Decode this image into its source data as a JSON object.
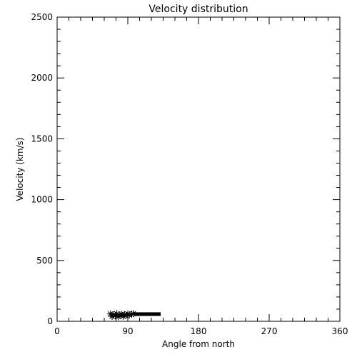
{
  "chart_data": {
    "type": "scatter",
    "title": "Velocity distribution",
    "x_label": "Angle from north",
    "y_label": "Velocity (km/s)",
    "xlim": [
      0,
      360
    ],
    "xticks": [
      0,
      90,
      180,
      270,
      360
    ],
    "ylim": [
      0,
      2500
    ],
    "yticks": [
      0,
      500,
      1000,
      1500,
      2000,
      2500
    ],
    "series": [
      {
        "marker": "asterisk",
        "color": "#000000",
        "x": [
          68,
          70,
          72,
          74,
          76,
          78,
          80,
          82,
          84,
          86,
          88,
          90,
          92,
          95,
          97
        ],
        "values": [
          60,
          40,
          55,
          45,
          62,
          38,
          50,
          58,
          42,
          55,
          48,
          60,
          52,
          58,
          62
        ]
      },
      {
        "marker": "square",
        "color": "#000000",
        "x": [
          100,
          102,
          104,
          106,
          108,
          110,
          112,
          114,
          116,
          118,
          120,
          122,
          124,
          126,
          128,
          130
        ],
        "values": [
          59,
          59,
          59,
          59,
          59,
          59,
          59,
          59,
          59,
          59,
          59,
          59,
          59,
          59,
          59,
          59
        ]
      }
    ]
  }
}
